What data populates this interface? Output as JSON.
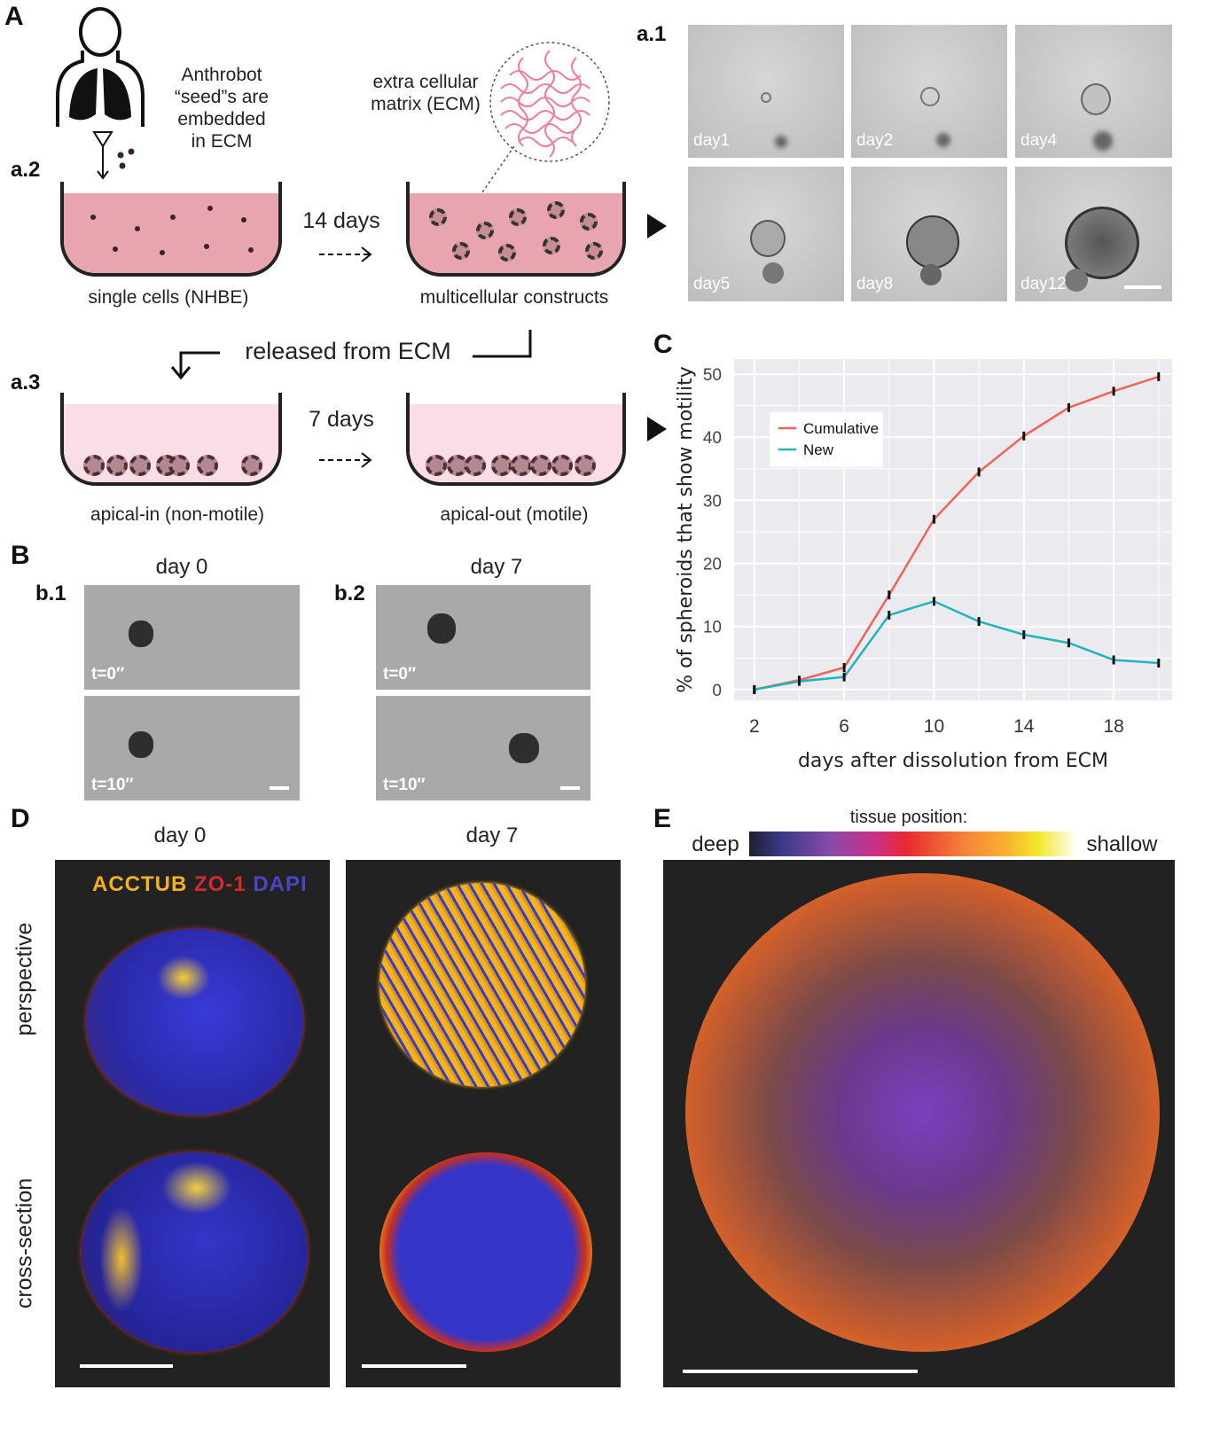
{
  "panel_a": {
    "label": "A",
    "sub_a1": "a.1",
    "sub_a2": "a.2",
    "sub_a3": "a.3",
    "seed_text": [
      "Anthrobot",
      "“seed”s are",
      "embedded",
      "in ECM"
    ],
    "ecm_text": [
      "extra cellular",
      "matrix (ECM)"
    ],
    "dish1_label": "single cells (NHBE)",
    "arrow1_label": "14 days",
    "dish2_label": "multicellular constructs",
    "released_label": "released from ECM",
    "arrow2_label": "7 days",
    "dish3_label": "apical-in (non-motile)",
    "dish4_label": "apical-out (motile)",
    "timepoints": [
      "day1",
      "day2",
      "day4",
      "day5",
      "day8",
      "day12"
    ],
    "media_color": "#e8a5b0",
    "media_light_color": "#fadde6"
  },
  "panel_b": {
    "label": "B",
    "sub_b1": "b.1",
    "sub_b2": "b.2",
    "day0": "day 0",
    "day7": "day 7",
    "t0": "t=0″",
    "t10": "t=10″"
  },
  "panel_c": {
    "label": "C"
  },
  "chart_data": {
    "type": "line",
    "title": "",
    "xlabel": "days after dissolution from ECM",
    "ylabel": "% of spheroids that show motility",
    "x": [
      2,
      4,
      6,
      8,
      10,
      12,
      14,
      16,
      18,
      20
    ],
    "xticks": [
      2,
      6,
      10,
      14,
      18
    ],
    "yticks": [
      0,
      10,
      20,
      30,
      40,
      50
    ],
    "xlim": [
      1.1,
      20.6
    ],
    "ylim": [
      -1.7,
      52.4
    ],
    "grid": true,
    "legend": "top-left",
    "background": "#ebebef",
    "series": [
      {
        "name": "Cumulative",
        "color": "#f0635a",
        "values": [
          0,
          1.5,
          3.5,
          15,
          27,
          34.5,
          40.2,
          44.7,
          47.3,
          49.6
        ]
      },
      {
        "name": "New",
        "color": "#1fb5bd",
        "values": [
          0,
          1.3,
          2,
          11.8,
          14,
          10.8,
          8.7,
          7.4,
          4.7,
          4.2
        ]
      }
    ]
  },
  "panel_d": {
    "label": "D",
    "day0": "day 0",
    "day7": "day 7",
    "row1": "perspective",
    "row2": "cross-section",
    "stain": {
      "acctub": "ACCTUB",
      "zo1": "ZO-1",
      "dapi": "DAPI"
    },
    "colors": {
      "acctub": "#f2b31c",
      "zo1": "#d42a2a",
      "dapi": "#4747c8"
    }
  },
  "panel_e": {
    "label": "E",
    "title": "tissue position:",
    "deep": "deep",
    "shallow": "shallow"
  }
}
